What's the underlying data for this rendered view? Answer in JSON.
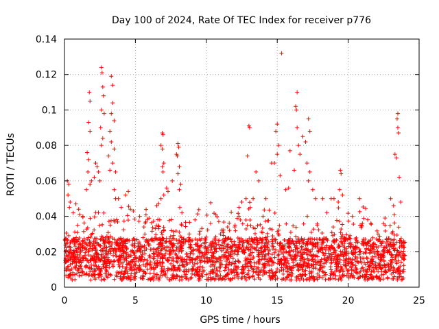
{
  "chart_data": {
    "type": "scatter",
    "title": "Day 100 of 2024, Rate Of TEC Index for receiver p776",
    "xlabel": "GPS time / hours",
    "ylabel": "ROTI / TECUs",
    "xlim": [
      0,
      25
    ],
    "ylim": [
      0,
      0.14
    ],
    "xticks": [
      0,
      5,
      10,
      15,
      20,
      25
    ],
    "xtick_labels": [
      "0",
      "5",
      "10",
      "15",
      "20",
      "25"
    ],
    "yticks": [
      0,
      0.02,
      0.04,
      0.06,
      0.08,
      0.1,
      0.12,
      0.14
    ],
    "ytick_labels": [
      "0",
      "0.02",
      "0.04",
      "0.06",
      "0.08",
      "0.1",
      "0.12",
      "0.14"
    ],
    "grid": true,
    "marker": "+",
    "color": "#ff0000",
    "series": [
      {
        "name": "ROTI",
        "points": [
          [
            0.2,
            0.06
          ],
          [
            0.3,
            0.058
          ],
          [
            0.25,
            0.052
          ],
          [
            0.4,
            0.048
          ],
          [
            0.35,
            0.045
          ],
          [
            0.8,
            0.047
          ],
          [
            1.0,
            0.044
          ],
          [
            1.3,
            0.04
          ],
          [
            1.6,
            0.076
          ],
          [
            1.7,
            0.072
          ],
          [
            1.75,
            0.11
          ],
          [
            1.8,
            0.105
          ],
          [
            1.7,
            0.093
          ],
          [
            1.8,
            0.088
          ],
          [
            1.65,
            0.065
          ],
          [
            1.9,
            0.06
          ],
          [
            1.8,
            0.058
          ],
          [
            1.55,
            0.055
          ],
          [
            2.2,
            0.07
          ],
          [
            2.3,
            0.068
          ],
          [
            2.1,
            0.062
          ],
          [
            2.4,
            0.065
          ],
          [
            2.5,
            0.06
          ],
          [
            2.6,
            0.08
          ],
          [
            2.7,
            0.084
          ],
          [
            2.6,
            0.124
          ],
          [
            2.65,
            0.121
          ],
          [
            2.7,
            0.113
          ],
          [
            2.75,
            0.108
          ],
          [
            2.6,
            0.1
          ],
          [
            2.8,
            0.098
          ],
          [
            2.55,
            0.09
          ],
          [
            3.3,
            0.119
          ],
          [
            3.4,
            0.114
          ],
          [
            3.4,
            0.104
          ],
          [
            3.3,
            0.098
          ],
          [
            3.5,
            0.094
          ],
          [
            3.2,
            0.088
          ],
          [
            3.3,
            0.082
          ],
          [
            3.5,
            0.078
          ],
          [
            3.4,
            0.07
          ],
          [
            3.6,
            0.065
          ],
          [
            3.1,
            0.074
          ],
          [
            3.2,
            0.066
          ],
          [
            3.5,
            0.055
          ],
          [
            3.6,
            0.05
          ],
          [
            3.8,
            0.05
          ],
          [
            4.0,
            0.045
          ],
          [
            4.3,
            0.052
          ],
          [
            4.5,
            0.054
          ],
          [
            5.3,
            0.04
          ],
          [
            5.6,
            0.034
          ],
          [
            6.5,
            0.046
          ],
          [
            6.8,
            0.05
          ],
          [
            6.9,
            0.087
          ],
          [
            6.95,
            0.086
          ],
          [
            6.8,
            0.08
          ],
          [
            6.9,
            0.078
          ],
          [
            7.0,
            0.07
          ],
          [
            6.9,
            0.068
          ],
          [
            6.95,
            0.065
          ],
          [
            7.2,
            0.056
          ],
          [
            7.3,
            0.054
          ],
          [
            7.0,
            0.052
          ],
          [
            7.6,
            0.06
          ],
          [
            7.9,
            0.075
          ],
          [
            8.0,
            0.081
          ],
          [
            8.05,
            0.079
          ],
          [
            7.95,
            0.074
          ],
          [
            8.1,
            0.068
          ],
          [
            8.0,
            0.064
          ],
          [
            8.2,
            0.058
          ],
          [
            8.1,
            0.055
          ],
          [
            8.8,
            0.03
          ],
          [
            9.2,
            0.038
          ],
          [
            9.5,
            0.03
          ],
          [
            10.3,
            0.036
          ],
          [
            11.0,
            0.03
          ],
          [
            11.5,
            0.034
          ],
          [
            12.0,
            0.034
          ],
          [
            12.3,
            0.045
          ],
          [
            12.5,
            0.048
          ],
          [
            12.8,
            0.05
          ],
          [
            12.9,
            0.074
          ],
          [
            13.0,
            0.091
          ],
          [
            13.05,
            0.09
          ],
          [
            13.3,
            0.05
          ],
          [
            13.5,
            0.065
          ],
          [
            13.7,
            0.06
          ],
          [
            14.0,
            0.04
          ],
          [
            14.2,
            0.05
          ],
          [
            14.6,
            0.07
          ],
          [
            14.8,
            0.07
          ],
          [
            14.9,
            0.088
          ],
          [
            15.0,
            0.092
          ],
          [
            15.1,
            0.08
          ],
          [
            15.0,
            0.075
          ],
          [
            15.2,
            0.063
          ],
          [
            15.3,
            0.132
          ],
          [
            15.6,
            0.055
          ],
          [
            15.8,
            0.056
          ],
          [
            15.9,
            0.077
          ],
          [
            16.2,
            0.066
          ],
          [
            16.4,
            0.11
          ],
          [
            16.3,
            0.102
          ],
          [
            16.35,
            0.1
          ],
          [
            16.4,
            0.09
          ],
          [
            16.5,
            0.08
          ],
          [
            16.6,
            0.075
          ],
          [
            16.8,
            0.085
          ],
          [
            17.0,
            0.082
          ],
          [
            17.2,
            0.095
          ],
          [
            17.3,
            0.088
          ],
          [
            17.1,
            0.07
          ],
          [
            17.3,
            0.065
          ],
          [
            17.2,
            0.06
          ],
          [
            17.5,
            0.055
          ],
          [
            17.7,
            0.05
          ],
          [
            18.2,
            0.05
          ],
          [
            18.5,
            0.042
          ],
          [
            18.8,
            0.05
          ],
          [
            19.0,
            0.05
          ],
          [
            19.3,
            0.048
          ],
          [
            19.45,
            0.066
          ],
          [
            19.5,
            0.064
          ],
          [
            19.4,
            0.055
          ],
          [
            19.6,
            0.052
          ],
          [
            20.3,
            0.04
          ],
          [
            20.8,
            0.05
          ],
          [
            21.0,
            0.036
          ],
          [
            21.6,
            0.036
          ],
          [
            22.1,
            0.03
          ],
          [
            22.6,
            0.035
          ],
          [
            23.0,
            0.05
          ],
          [
            23.2,
            0.046
          ],
          [
            23.3,
            0.075
          ],
          [
            23.4,
            0.073
          ],
          [
            23.5,
            0.098
          ],
          [
            23.45,
            0.095
          ],
          [
            23.5,
            0.09
          ],
          [
            23.55,
            0.087
          ],
          [
            23.6,
            0.062
          ],
          [
            23.7,
            0.048
          ],
          [
            23.9,
            0.026
          ],
          [
            24.0,
            0.018
          ]
        ]
      }
    ]
  }
}
